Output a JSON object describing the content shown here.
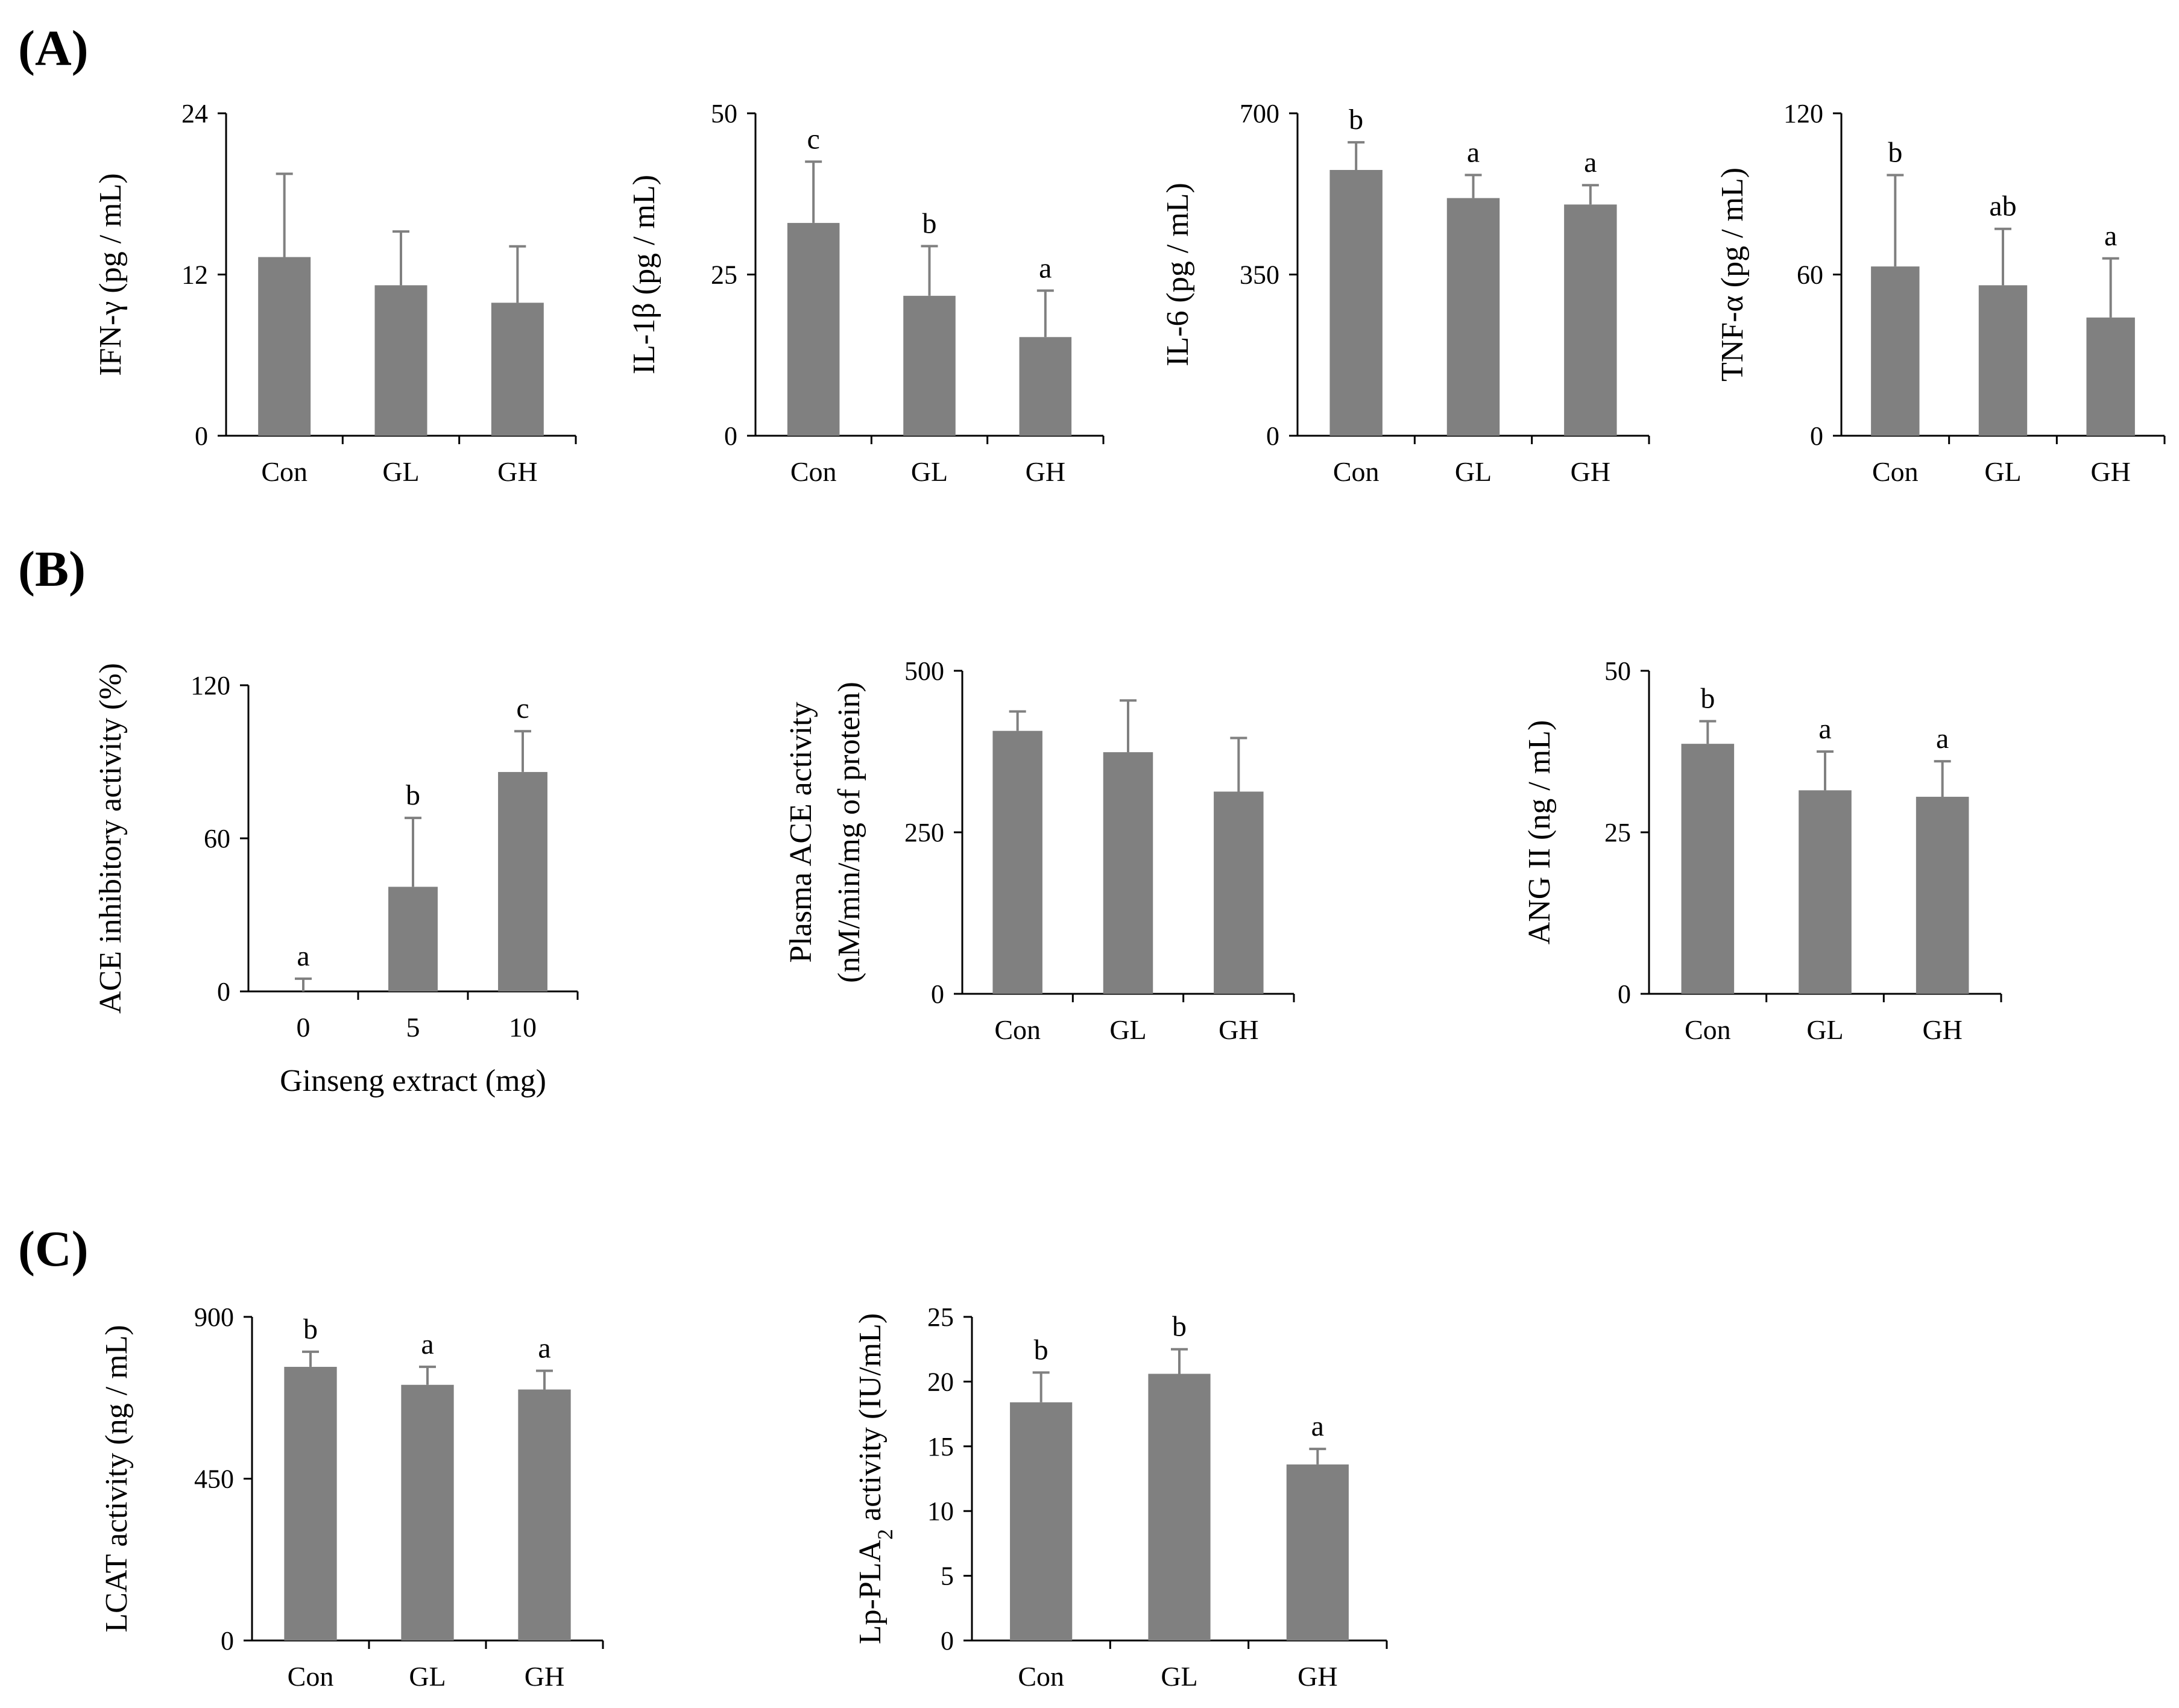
{
  "panel_labels": [
    "(A)",
    "(B)",
    "(C)"
  ],
  "chart_data": [
    {
      "type": "bar",
      "panel": "A",
      "title": "",
      "ylabel": "IFN-γ (pg / mL)",
      "xlabel": "",
      "categories": [
        "Con",
        "GL",
        "GH"
      ],
      "values": [
        13.3,
        11.2,
        9.9
      ],
      "errors": [
        6.2,
        4.0,
        4.2
      ],
      "sig_letters": [
        "",
        "",
        ""
      ],
      "ylim": [
        0,
        24
      ],
      "yticks": [
        0,
        12,
        24
      ]
    },
    {
      "type": "bar",
      "panel": "A",
      "title": "",
      "ylabel": "IL-1β (pg / mL)",
      "xlabel": "",
      "categories": [
        "Con",
        "GL",
        "GH"
      ],
      "values": [
        33,
        21.7,
        15.3
      ],
      "errors": [
        9.5,
        7.7,
        7.2
      ],
      "sig_letters": [
        "c",
        "b",
        "a"
      ],
      "ylim": [
        0,
        50
      ],
      "yticks": [
        0,
        25,
        50
      ]
    },
    {
      "type": "bar",
      "panel": "A",
      "title": "",
      "ylabel": "IL-6 (pg / mL)",
      "xlabel": "",
      "categories": [
        "Con",
        "GL",
        "GH"
      ],
      "values": [
        577,
        516,
        502
      ],
      "errors": [
        60,
        50,
        42
      ],
      "sig_letters": [
        "b",
        "a",
        "a"
      ],
      "ylim": [
        0,
        700
      ],
      "yticks": [
        0,
        350,
        700
      ]
    },
    {
      "type": "bar",
      "panel": "A",
      "title": "",
      "ylabel": "TNF-α (pg / mL)",
      "xlabel": "",
      "categories": [
        "Con",
        "GL",
        "GH"
      ],
      "values": [
        63,
        56,
        44
      ],
      "errors": [
        34,
        21,
        22
      ],
      "sig_letters": [
        "b",
        "ab",
        "a"
      ],
      "ylim": [
        0,
        120
      ],
      "yticks": [
        0,
        60,
        120
      ]
    },
    {
      "type": "bar",
      "panel": "B",
      "title": "",
      "ylabel": "ACE inhibitory activity (%)",
      "xlabel": "Ginseng extract (mg)",
      "categories": [
        "0",
        "5",
        "10"
      ],
      "values": [
        0,
        41,
        86
      ],
      "errors": [
        5,
        27,
        16
      ],
      "sig_letters": [
        "a",
        "b",
        "c"
      ],
      "ylim": [
        0,
        120
      ],
      "yticks": [
        0,
        60,
        120
      ]
    },
    {
      "type": "bar",
      "panel": "B",
      "title": "",
      "ylabel": [
        "Plasma ACE activity",
        "(nM/min/mg of protein)"
      ],
      "xlabel": "",
      "categories": [
        "Con",
        "GL",
        "GH"
      ],
      "values": [
        407,
        374,
        313
      ],
      "errors": [
        30,
        80,
        83
      ],
      "sig_letters": [
        "",
        "",
        ""
      ],
      "ylim": [
        0,
        500
      ],
      "yticks": [
        0,
        250,
        500
      ]
    },
    {
      "type": "bar",
      "panel": "B",
      "title": "",
      "ylabel": "ANG II  (ng / mL)",
      "xlabel": "",
      "categories": [
        "Con",
        "GL",
        "GH"
      ],
      "values": [
        38.7,
        31.5,
        30.5
      ],
      "errors": [
        3.5,
        6,
        5.5
      ],
      "sig_letters": [
        "b",
        "a",
        "a"
      ],
      "ylim": [
        0,
        50
      ],
      "yticks": [
        0,
        25,
        50
      ]
    },
    {
      "type": "bar",
      "panel": "C",
      "title": "",
      "ylabel": "LCAT activity (ng / mL)",
      "xlabel": "",
      "categories": [
        "Con",
        "GL",
        "GH"
      ],
      "values": [
        761,
        711,
        698
      ],
      "errors": [
        42,
        50,
        52
      ],
      "sig_letters": [
        "b",
        "a",
        "a"
      ],
      "ylim": [
        0,
        900
      ],
      "yticks": [
        0,
        450,
        900
      ]
    },
    {
      "type": "bar",
      "panel": "C",
      "title": "",
      "ylabel": "Lp-PLA2 activity (IU/mL)",
      "xlabel": "",
      "categories": [
        "Con",
        "GL",
        "GH"
      ],
      "values": [
        18.4,
        20.6,
        13.6
      ],
      "errors": [
        2.3,
        1.9,
        1.2
      ],
      "sig_letters": [
        "b",
        "b",
        "a"
      ],
      "ylim": [
        0,
        25
      ],
      "yticks": [
        0,
        5,
        10,
        15,
        20,
        25
      ]
    }
  ]
}
